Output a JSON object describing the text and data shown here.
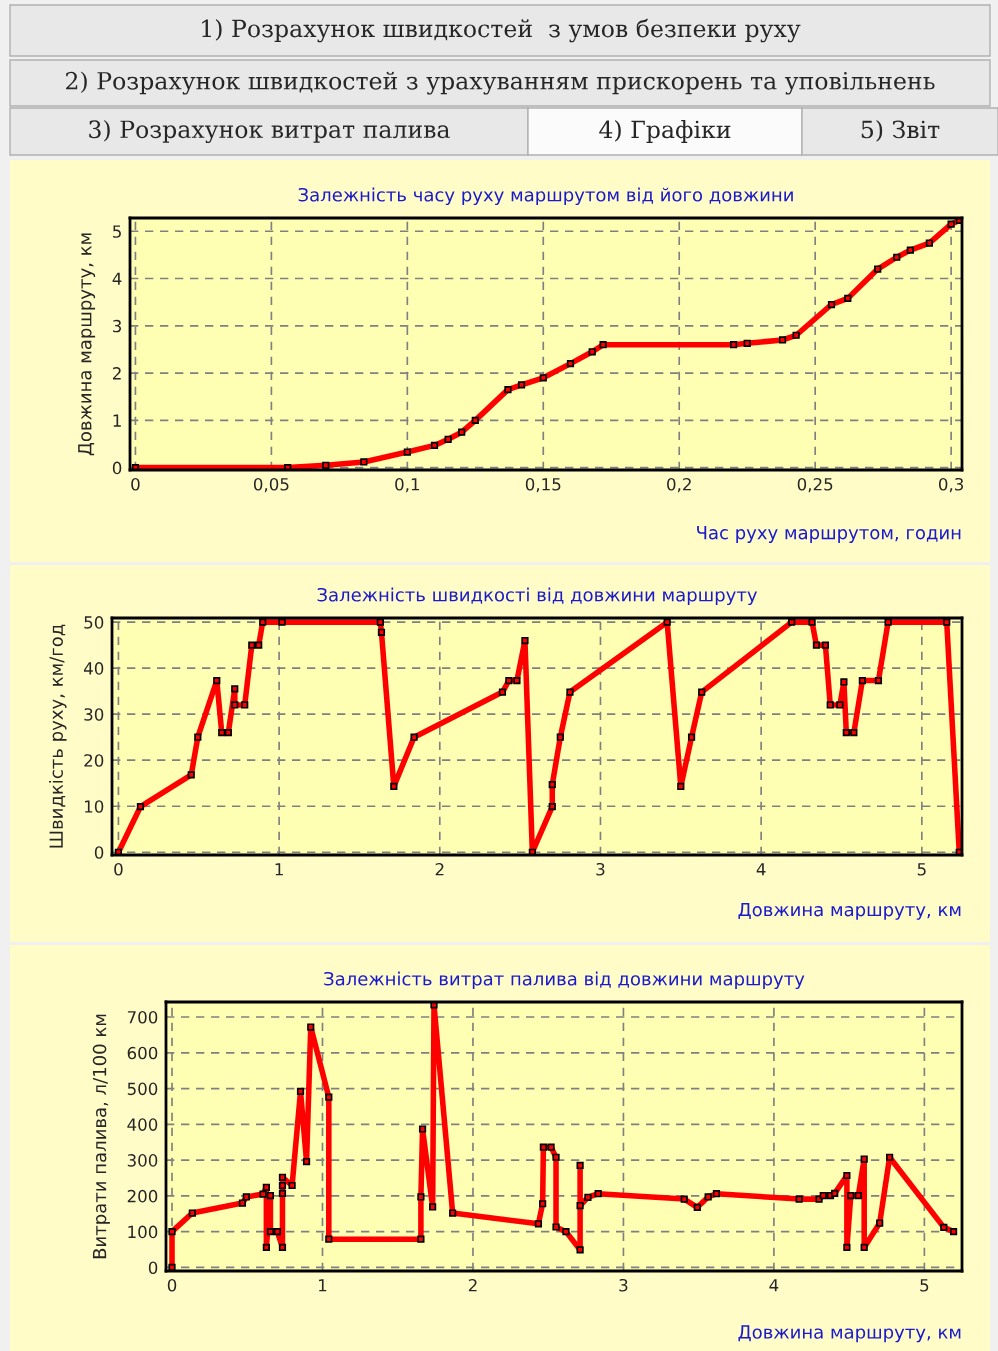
{
  "chart_data": [
    {
      "type": "line",
      "title": "Залежність часу руху маршрутом від його довжини",
      "xlabel": "Час руху маршрутом, годин",
      "ylabel": "Довжина маршруту, км",
      "annotations": [
        "1) Розрахунок швидкостей  з умов безпеки руху",
        "2) Розрахунок швидкостей з урахуванням прискорень та уповільнень",
        "3) Розрахунок витрат палива",
        "4) Графіки",
        "5) Звіт"
      ],
      "x": [
        0,
        0.056,
        0.07,
        0.084,
        0.1,
        0.11,
        0.115,
        0.12,
        0.125,
        0.137,
        0.142,
        0.15,
        0.16,
        0.168,
        0.172,
        0.22,
        0.225,
        0.238,
        0.243,
        0.256,
        0.262,
        0.273,
        0.28,
        0.285,
        0.292,
        0.3,
        0.303
      ],
      "series": [
        {
          "color": "#ff0000",
          "values": [
            0,
            0,
            0.05,
            0.12,
            0.33,
            0.47,
            0.6,
            0.75,
            1.0,
            1.65,
            1.75,
            1.9,
            2.2,
            2.45,
            2.6,
            2.6,
            2.63,
            2.7,
            2.8,
            3.45,
            3.58,
            4.2,
            4.45,
            4.6,
            4.75,
            5.15,
            5.23
          ]
        }
      ],
      "xlim": [
        -0.002,
        0.304
      ],
      "ylim": [
        -0.05,
        5.28
      ],
      "xticks": [
        0,
        {
          "value": 0.05,
          "label": "0,05"
        },
        {
          "value": 0.1,
          "label": "0,1"
        },
        {
          "value": 0.15,
          "label": "0,15"
        },
        {
          "value": 0.2,
          "label": "0,2"
        },
        {
          "value": 0.25,
          "label": "0,25"
        },
        {
          "value": 0.3,
          "label": "0,3"
        }
      ],
      "yticks": [
        0,
        1,
        2,
        3,
        4,
        5
      ],
      "grid": true,
      "marker": "square",
      "line_style": "solid"
    },
    {
      "type": "line",
      "title": "Залежність швидкості від довжини маршруту",
      "xlabel": "Довжина маршруту, км",
      "ylabel": "Швидкість руху, км/год",
      "x": [
        0,
        0.137,
        0.453,
        0.494,
        0.612,
        0.643,
        0.684,
        0.724,
        0.724,
        0.786,
        0.83,
        0.873,
        0.898,
        1.018,
        1.63,
        1.637,
        1.714,
        1.84,
        2.39,
        2.43,
        2.48,
        2.53,
        2.576,
        2.7,
        2.7,
        2.75,
        2.81,
        3.415,
        3.5,
        3.567,
        3.63,
        4.19,
        4.317,
        4.344,
        4.4,
        4.43,
        4.49,
        4.515,
        4.53,
        4.577,
        4.63,
        4.73,
        4.79,
        5.155,
        5.233
      ],
      "series": [
        {
          "color": "#ff0000",
          "values": [
            0,
            9.9,
            16.8,
            25,
            37.3,
            26,
            26,
            35.5,
            32,
            32,
            45,
            45,
            50,
            50,
            50,
            47.8,
            14.3,
            25,
            34.8,
            37.3,
            37.3,
            46,
            0,
            9.9,
            14.7,
            25,
            34.8,
            50,
            14.3,
            25,
            34.8,
            50,
            50,
            45,
            45,
            32,
            32,
            37,
            26,
            26,
            37.3,
            37.3,
            50,
            50,
            0
          ]
        }
      ],
      "xlim": [
        -0.04,
        5.25
      ],
      "ylim": [
        -0.6,
        50.9
      ],
      "xticks": [
        0,
        1,
        2,
        3,
        4,
        5
      ],
      "yticks": [
        0,
        10,
        20,
        30,
        40,
        50
      ],
      "grid": true,
      "marker": "square",
      "line_style": "solid"
    },
    {
      "type": "line",
      "title": "Залежність витрат палива від довжини маршруту",
      "xlabel": "Довжина маршруту, км",
      "ylabel": "Витрати палива, л/100 км",
      "x": [
        0,
        0,
        0.135,
        0.468,
        0.494,
        0.605,
        0.627,
        0.627,
        0.654,
        0.654,
        0.7,
        0.734,
        0.734,
        0.734,
        0.734,
        0.798,
        0.854,
        0.894,
        0.922,
        1.042,
        1.042,
        1.654,
        1.654,
        1.665,
        1.732,
        1.741,
        1.865,
        2.435,
        2.463,
        2.468,
        2.519,
        2.552,
        2.552,
        2.618,
        2.712,
        2.712,
        2.712,
        2.764,
        2.832,
        3.404,
        3.491,
        3.563,
        3.618,
        4.168,
        4.3,
        4.328,
        4.376,
        4.404,
        4.485,
        4.485,
        4.511,
        4.561,
        4.6,
        4.6,
        4.703,
        4.769,
        5.129,
        5.194
      ],
      "series": [
        {
          "color": "#ff0000",
          "values": [
            0,
            100,
            152,
            180,
            197,
            205,
            224,
            56,
            201,
            100,
            100,
            56,
            207,
            229,
            252,
            229,
            492,
            296,
            672,
            476,
            79,
            79,
            197,
            387,
            169,
            734,
            152,
            122,
            178,
            336,
            336,
            308,
            113,
            100,
            49,
            285,
            173,
            196,
            206,
            191,
            168,
            197,
            206,
            191,
            191,
            201,
            201,
            207,
            257,
            56,
            201,
            201,
            303,
            56,
            124,
            308,
            112,
            100
          ]
        }
      ],
      "xlim": [
        -0.04,
        5.25
      ],
      "ylim": [
        -10,
        742
      ],
      "xticks": [
        0,
        1,
        2,
        3,
        4,
        5
      ],
      "yticks": [
        0,
        100,
        200,
        300,
        400,
        500,
        600,
        700
      ],
      "grid": true,
      "marker": "square",
      "line_style": "solid"
    }
  ]
}
